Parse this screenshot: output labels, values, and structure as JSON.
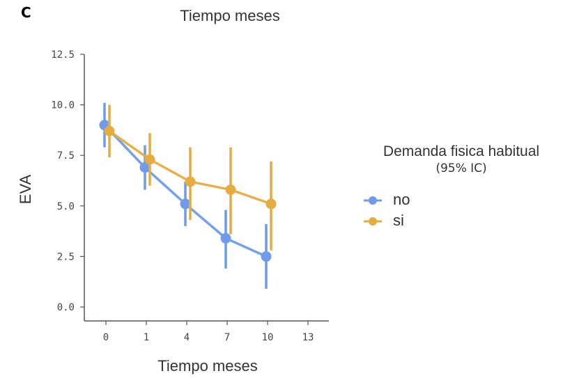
{
  "panel_label": "C",
  "chart_data": {
    "type": "line",
    "title": "Tiempo meses",
    "xlabel": "Tiempo meses",
    "ylabel": "EVA",
    "categories": [
      "0",
      "1",
      "4",
      "7",
      "10",
      "13"
    ],
    "ylim": [
      0,
      12.5
    ],
    "yticks": [
      "0.0",
      "2.5",
      "5.0",
      "7.5",
      "10.0",
      "12.5"
    ],
    "grid": false,
    "legend_position": "right",
    "legend_title": "Demanda fisica habitual",
    "legend_subtitle": "(95% IC)",
    "series": [
      {
        "name": "no",
        "color": "#6f9be8",
        "x": [
          "0",
          "1",
          "4",
          "7",
          "10"
        ],
        "values": [
          9.0,
          6.9,
          5.1,
          3.4,
          2.5
        ],
        "ci_low": [
          7.9,
          5.8,
          4.0,
          1.9,
          0.9
        ],
        "ci_high": [
          10.1,
          8.0,
          6.2,
          4.8,
          4.1
        ]
      },
      {
        "name": "si",
        "color": "#e5ac42",
        "x": [
          "0",
          "1",
          "4",
          "7",
          "10"
        ],
        "values": [
          8.7,
          7.3,
          6.2,
          5.8,
          5.1
        ],
        "ci_low": [
          7.4,
          6.0,
          4.3,
          3.6,
          2.8
        ],
        "ci_high": [
          10.0,
          8.6,
          7.9,
          7.9,
          7.2
        ]
      }
    ]
  }
}
